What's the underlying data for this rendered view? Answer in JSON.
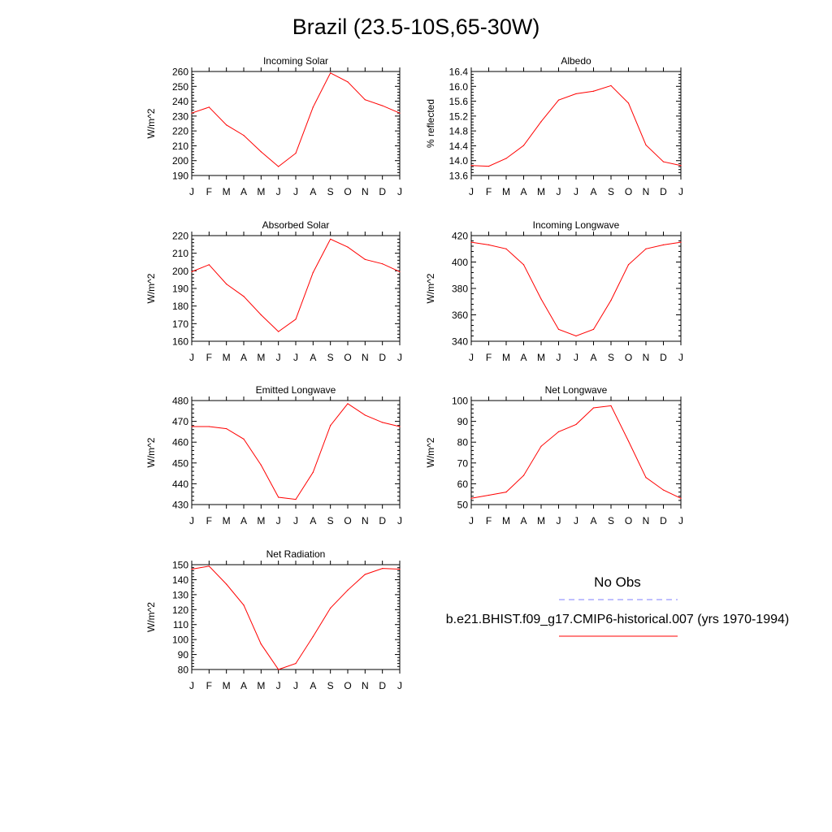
{
  "figure": {
    "title": "Brazil (23.5-10S,65-30W)"
  },
  "legend": {
    "entries": [
      {
        "label": "No Obs",
        "color": "#7f7fff",
        "dash": true
      },
      {
        "label": "b.e21.BHIST.f09_g17.CMIP6-historical.007 (yrs 1970-1994)",
        "color": "#ff0000",
        "dash": false
      }
    ]
  },
  "chart_data": [
    {
      "type": "line",
      "title": "Incoming Solar",
      "ylabel": "W/m^2",
      "categories": [
        "J",
        "F",
        "M",
        "A",
        "M",
        "J",
        "J",
        "A",
        "S",
        "O",
        "N",
        "D",
        "J"
      ],
      "ylim": [
        190,
        260
      ],
      "yticks": [
        190,
        200,
        210,
        220,
        230,
        240,
        250,
        260
      ],
      "ytick_labels": [
        "190",
        "200",
        "210",
        "220",
        "230",
        "240",
        "250",
        "260"
      ],
      "series": [
        {
          "color": "#ff0000",
          "values": [
            232,
            236,
            224,
            217,
            206,
            196,
            205,
            236,
            259,
            253,
            241,
            237,
            232
          ]
        }
      ]
    },
    {
      "type": "line",
      "title": "Albedo",
      "ylabel": "% reflected",
      "categories": [
        "J",
        "F",
        "M",
        "A",
        "M",
        "J",
        "J",
        "A",
        "S",
        "O",
        "N",
        "D",
        "J"
      ],
      "ylim": [
        13.6,
        16.4
      ],
      "yticks": [
        13.6,
        14.0,
        14.4,
        14.8,
        15.2,
        15.6,
        16.0,
        16.4
      ],
      "ytick_labels": [
        "13.6",
        "14.0",
        "14.4",
        "14.8",
        "15.2",
        "15.6",
        "16.0",
        "16.4"
      ],
      "series": [
        {
          "color": "#ff0000",
          "values": [
            13.87,
            13.85,
            14.06,
            14.41,
            15.05,
            15.63,
            15.8,
            15.87,
            16.02,
            15.55,
            14.42,
            13.97,
            13.87
          ]
        }
      ]
    },
    {
      "type": "line",
      "title": "Absorbed Solar",
      "ylabel": "W/m^2",
      "categories": [
        "J",
        "F",
        "M",
        "A",
        "M",
        "J",
        "J",
        "A",
        "S",
        "O",
        "N",
        "D",
        "J"
      ],
      "ylim": [
        160,
        220
      ],
      "yticks": [
        160,
        170,
        180,
        190,
        200,
        210,
        220
      ],
      "ytick_labels": [
        "160",
        "170",
        "180",
        "190",
        "200",
        "210",
        "220"
      ],
      "series": [
        {
          "color": "#ff0000",
          "values": [
            199.5,
            203.5,
            192.5,
            185.5,
            175,
            165.5,
            172.5,
            199,
            218,
            213.5,
            206.5,
            204,
            199.5
          ]
        }
      ]
    },
    {
      "type": "line",
      "title": "Incoming Longwave",
      "ylabel": "W/m^2",
      "categories": [
        "J",
        "F",
        "M",
        "A",
        "M",
        "J",
        "J",
        "A",
        "S",
        "O",
        "N",
        "D",
        "J"
      ],
      "ylim": [
        340,
        420
      ],
      "yticks": [
        340,
        360,
        380,
        400,
        420
      ],
      "ytick_labels": [
        "340",
        "360",
        "380",
        "400",
        "420"
      ],
      "series": [
        {
          "color": "#ff0000",
          "values": [
            415,
            413,
            410,
            398,
            372,
            349,
            344,
            349,
            371,
            398,
            410,
            413,
            415
          ]
        }
      ]
    },
    {
      "type": "line",
      "title": "Emitted Longwave",
      "ylabel": "W/m^2",
      "categories": [
        "J",
        "F",
        "M",
        "A",
        "M",
        "J",
        "J",
        "A",
        "S",
        "O",
        "N",
        "D",
        "J"
      ],
      "ylim": [
        430,
        480
      ],
      "yticks": [
        430,
        440,
        450,
        460,
        470,
        480
      ],
      "ytick_labels": [
        "430",
        "440",
        "450",
        "460",
        "470",
        "480"
      ],
      "series": [
        {
          "color": "#ff0000",
          "values": [
            467.5,
            467.5,
            466.5,
            461.5,
            449,
            433.5,
            432.5,
            445.5,
            468,
            478.5,
            473,
            469.5,
            467.5
          ]
        }
      ]
    },
    {
      "type": "line",
      "title": "Net Longwave",
      "ylabel": "W/m^2",
      "categories": [
        "J",
        "F",
        "M",
        "A",
        "M",
        "J",
        "J",
        "A",
        "S",
        "O",
        "N",
        "D",
        "J"
      ],
      "ylim": [
        50,
        100
      ],
      "yticks": [
        50,
        60,
        70,
        80,
        90,
        100
      ],
      "ytick_labels": [
        "50",
        "60",
        "70",
        "80",
        "90",
        "100"
      ],
      "series": [
        {
          "color": "#ff0000",
          "values": [
            53,
            54.5,
            56,
            64,
            78,
            85,
            88.5,
            96.5,
            97.5,
            80.5,
            63,
            57,
            53
          ]
        }
      ]
    },
    {
      "type": "line",
      "title": "Net Radiation",
      "ylabel": "W/m^2",
      "categories": [
        "J",
        "F",
        "M",
        "A",
        "M",
        "J",
        "J",
        "A",
        "S",
        "O",
        "N",
        "D",
        "J"
      ],
      "ylim": [
        80,
        150
      ],
      "yticks": [
        80,
        90,
        100,
        110,
        120,
        130,
        140,
        150
      ],
      "ytick_labels": [
        "80",
        "90",
        "100",
        "110",
        "120",
        "130",
        "140",
        "150"
      ],
      "series": [
        {
          "color": "#ff0000",
          "values": [
            147,
            149,
            137,
            123,
            97,
            80,
            84,
            102,
            121,
            133,
            143.5,
            147.5,
            147
          ]
        }
      ]
    }
  ]
}
